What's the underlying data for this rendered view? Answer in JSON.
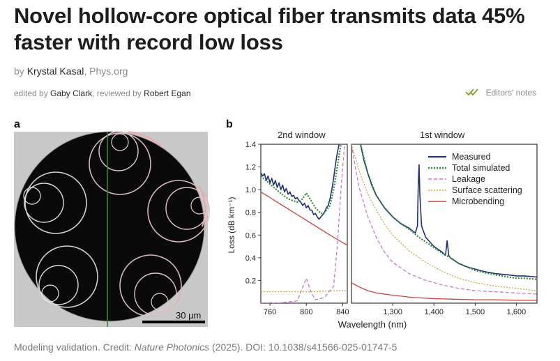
{
  "article": {
    "title": "Novel hollow-core optical fiber transmits data 45% faster with record low loss",
    "byline_prefix": "by",
    "author": "Krystal Kasal",
    "byline_sep": ",",
    "publisher": "Phys.org",
    "edited_prefix": "edited by",
    "editor": "Gaby Clark",
    "reviewed_prefix": ", reviewed by",
    "reviewer": "Robert Egan",
    "editors_notes": "Editors' notes"
  },
  "figure": {
    "panel_a_label": "a",
    "panel_b_label": "b",
    "scale_bar_label": "30 µm",
    "left_window_label": "2nd window",
    "right_window_label": "1st window",
    "caption_prefix": "Modeling validation. Credit: ",
    "caption_journal": "Nature Photonics",
    "caption_suffix": " (2025). DOI: 10.1038/s41566-025-01747-5"
  },
  "colors": {
    "measured": "#1f2f7a",
    "total_simulated": "#2e8b2e",
    "leakage": "#c86ad0",
    "surface_scattering": "#c8a030",
    "microbending": "#c8403a",
    "check": "#7aa523"
  },
  "chart_data": {
    "type": "line",
    "xlabel": "Wavelength (nm)",
    "ylabel": "Loss (dB km⁻¹)",
    "ylim": [
      0,
      1.4
    ],
    "yticks": [
      "0.2",
      "0.4",
      "0.6",
      "0.8",
      "1.0",
      "1.2",
      "1.4"
    ],
    "panels": [
      {
        "name": "2nd window",
        "xlim": [
          750,
          845
        ],
        "xticks": [
          "760",
          "800",
          "840"
        ],
        "xtick_values": [
          760,
          800,
          840
        ],
        "series": [
          {
            "name": "Measured",
            "x": [
              750,
              752,
              754,
              756,
              758,
              760,
              762,
              764,
              766,
              768,
              770,
              772,
              774,
              776,
              778,
              780,
              782,
              784,
              786,
              788,
              790,
              792,
              794,
              796,
              798,
              800,
              802,
              804,
              806,
              808,
              810,
              812,
              814,
              816,
              818,
              820,
              822,
              824,
              826,
              828,
              830,
              832,
              834,
              836
            ],
            "y": [
              1.15,
              1.12,
              1.14,
              1.08,
              1.12,
              1.06,
              1.1,
              1.04,
              1.08,
              1.02,
              1.06,
              1.0,
              1.04,
              0.98,
              1.01,
              0.96,
              0.98,
              0.94,
              0.95,
              0.92,
              0.93,
              0.9,
              0.89,
              0.86,
              0.88,
              0.84,
              0.86,
              0.82,
              0.82,
              0.78,
              0.79,
              0.76,
              0.74,
              0.76,
              0.78,
              0.8,
              0.84,
              0.86,
              0.92,
              1.0,
              1.1,
              1.22,
              1.32,
              1.4
            ]
          },
          {
            "name": "Total simulated",
            "x": [
              750,
              760,
              770,
              780,
              790,
              796,
              800,
              804,
              810,
              816,
              820,
              826,
              830,
              834,
              838
            ],
            "y": [
              1.12,
              1.05,
              0.98,
              0.92,
              0.89,
              0.92,
              0.97,
              0.92,
              0.84,
              0.79,
              0.8,
              0.86,
              1.0,
              1.2,
              1.4
            ]
          },
          {
            "name": "Leakage",
            "x": [
              750,
              770,
              790,
              795,
              800,
              805,
              810,
              820,
              830,
              834,
              838,
              842
            ],
            "y": [
              0.0,
              0.0,
              0.02,
              0.12,
              0.22,
              0.1,
              0.03,
              0.05,
              0.15,
              0.5,
              1.0,
              1.4
            ]
          },
          {
            "name": "Surface scattering",
            "x": [
              750,
              770,
              790,
              810,
              830,
              845
            ],
            "y": [
              0.1,
              0.1,
              0.1,
              0.1,
              0.11,
              0.11
            ]
          },
          {
            "name": "Microbending",
            "x": [
              750,
              760,
              770,
              780,
              790,
              800,
              810,
              820,
              830,
              845
            ],
            "y": [
              0.98,
              0.93,
              0.88,
              0.83,
              0.78,
              0.73,
              0.68,
              0.63,
              0.58,
              0.51
            ]
          }
        ]
      },
      {
        "name": "1st window",
        "xlim": [
          1200,
          1650
        ],
        "xticks": [
          "1,300",
          "1,400",
          "1,500",
          "1,600"
        ],
        "xtick_values": [
          1300,
          1400,
          1500,
          1600
        ],
        "series": [
          {
            "name": "Measured",
            "x": [
              1222,
              1230,
              1240,
              1250,
              1260,
              1280,
              1300,
              1320,
              1340,
              1350,
              1355,
              1360,
              1362,
              1364,
              1366,
              1370,
              1380,
              1400,
              1420,
              1428,
              1432,
              1436,
              1440,
              1460,
              1480,
              1500,
              1520,
              1550,
              1580,
              1600,
              1620,
              1650
            ],
            "y": [
              1.4,
              1.26,
              1.14,
              1.03,
              0.95,
              0.84,
              0.76,
              0.7,
              0.66,
              0.63,
              0.62,
              0.68,
              1.05,
              1.22,
              0.95,
              0.68,
              0.58,
              0.5,
              0.45,
              0.42,
              0.55,
              0.42,
              0.4,
              0.35,
              0.32,
              0.3,
              0.28,
              0.26,
              0.25,
              0.24,
              0.24,
              0.23
            ]
          },
          {
            "name": "Total simulated",
            "x": [
              1222,
              1240,
              1260,
              1280,
              1300,
              1320,
              1340,
              1360,
              1380,
              1400,
              1420,
              1440,
              1460,
              1480,
              1500,
              1520,
              1550,
              1580,
              1600,
              1620,
              1650
            ],
            "y": [
              1.4,
              1.14,
              0.95,
              0.84,
              0.76,
              0.7,
              0.65,
              0.59,
              0.54,
              0.49,
              0.44,
              0.4,
              0.35,
              0.32,
              0.29,
              0.27,
              0.25,
              0.23,
              0.22,
              0.22,
              0.21
            ]
          },
          {
            "name": "Leakage",
            "x": [
              1200,
              1210,
              1220,
              1240,
              1260,
              1280,
              1300,
              1340,
              1380,
              1420,
              1460,
              1500,
              1550,
              1600,
              1650
            ],
            "y": [
              1.4,
              1.18,
              1.0,
              0.76,
              0.58,
              0.45,
              0.36,
              0.26,
              0.2,
              0.16,
              0.13,
              0.11,
              0.1,
              0.09,
              0.08
            ]
          },
          {
            "name": "Surface scattering",
            "x": [
              1200,
              1220,
              1240,
              1260,
              1280,
              1300,
              1340,
              1380,
              1420,
              1460,
              1500,
              1550,
              1600,
              1650
            ],
            "y": [
              1.4,
              1.15,
              0.96,
              0.82,
              0.7,
              0.6,
              0.46,
              0.36,
              0.28,
              0.22,
              0.18,
              0.15,
              0.13,
              0.11
            ]
          },
          {
            "name": "Microbending",
            "x": [
              1200,
              1220,
              1240,
              1260,
              1300,
              1350,
              1400,
              1450,
              1500,
              1550,
              1600,
              1650
            ],
            "y": [
              0.18,
              0.14,
              0.11,
              0.09,
              0.07,
              0.05,
              0.04,
              0.035,
              0.03,
              0.03,
              0.025,
              0.025
            ]
          }
        ]
      }
    ],
    "legend": [
      "Measured",
      "Total simulated",
      "Leakage",
      "Surface scattering",
      "Microbending"
    ],
    "legend_position": "top-right"
  }
}
